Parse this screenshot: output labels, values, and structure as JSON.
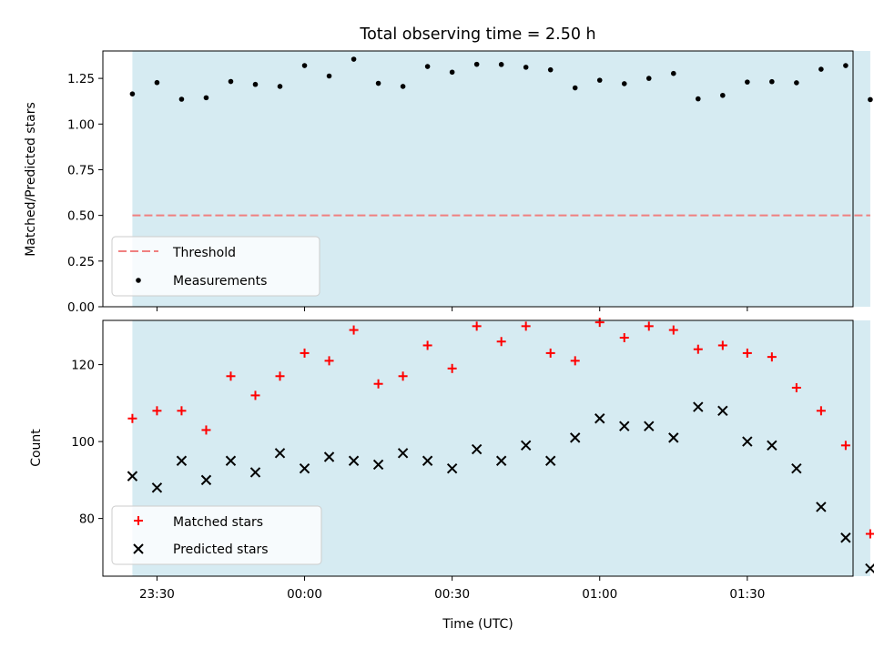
{
  "chart_data": {
    "title": "Total observing time = 2.50 h",
    "xlabel": "Time (UTC)",
    "x_tick_labels": [
      "23:30",
      "00:00",
      "00:30",
      "01:00",
      "01:30"
    ],
    "x_ticks_minutes_from_midnight": [
      -30,
      0,
      30,
      60,
      90
    ],
    "x_range_minutes_from_midnight": [
      -41.0,
      111.5
    ],
    "observing_window_minutes_from_midnight": [
      -35,
      115
    ],
    "observing_window_color": "#add8e6",
    "panels": [
      {
        "type": "scatter",
        "ylabel": "Matched/Predicted stars",
        "ylim": [
          0,
          1.4
        ],
        "y_ticks": [
          0.0,
          0.25,
          0.5,
          0.75,
          1.0,
          1.25
        ],
        "y_tick_labels": [
          "0.00",
          "0.25",
          "0.50",
          "0.75",
          "1.00",
          "1.25"
        ],
        "legend_position": "lower-left",
        "threshold": {
          "name": "Threshold",
          "value": 0.5,
          "color": "#f08080",
          "style": "dashed"
        },
        "series": [
          {
            "name": "Measurements",
            "marker": "dot",
            "color": "#000000",
            "values": [
              1.165,
              1.227,
              1.136,
              1.144,
              1.233,
              1.217,
              1.206,
              1.32,
              1.263,
              1.355,
              1.223,
              1.206,
              1.315,
              1.284,
              1.327,
              1.326,
              1.311,
              1.297,
              1.198,
              1.24,
              1.221,
              1.25,
              1.277,
              1.138,
              1.157,
              1.23,
              1.232,
              1.226,
              1.3,
              1.32,
              1.134
            ]
          }
        ]
      },
      {
        "type": "scatter",
        "ylabel": "Count",
        "ylim": [
          65,
          131.5
        ],
        "y_ticks": [
          80,
          100,
          120
        ],
        "y_tick_labels": [
          "80",
          "100",
          "120"
        ],
        "legend_position": "lower-left",
        "series": [
          {
            "name": "Matched stars",
            "marker": "plus",
            "color": "#ff0000",
            "values": [
              106,
              108,
              108,
              103,
              117,
              112,
              117,
              123,
              121,
              129,
              115,
              117,
              125,
              119,
              130,
              126,
              130,
              123,
              121,
              131,
              127,
              130,
              129,
              124,
              125,
              123,
              122,
              114,
              108,
              99,
              76
            ]
          },
          {
            "name": "Predicted stars",
            "marker": "x",
            "color": "#000000",
            "values": [
              91,
              88,
              95,
              90,
              95,
              92,
              97,
              93,
              96,
              95,
              94,
              97,
              95,
              93,
              98,
              95,
              99,
              95,
              101,
              106,
              104,
              104,
              101,
              109,
              108,
              100,
              99,
              93,
              83,
              75,
              67
            ]
          }
        ]
      }
    ],
    "x_values_minutes_from_midnight": [
      -35,
      -30,
      -25,
      -20,
      -15,
      -10,
      -5,
      0,
      5,
      10,
      15,
      20,
      25,
      30,
      35,
      40,
      45,
      50,
      55,
      60,
      65,
      70,
      75,
      80,
      85,
      90,
      95,
      100,
      105,
      110,
      115
    ]
  }
}
